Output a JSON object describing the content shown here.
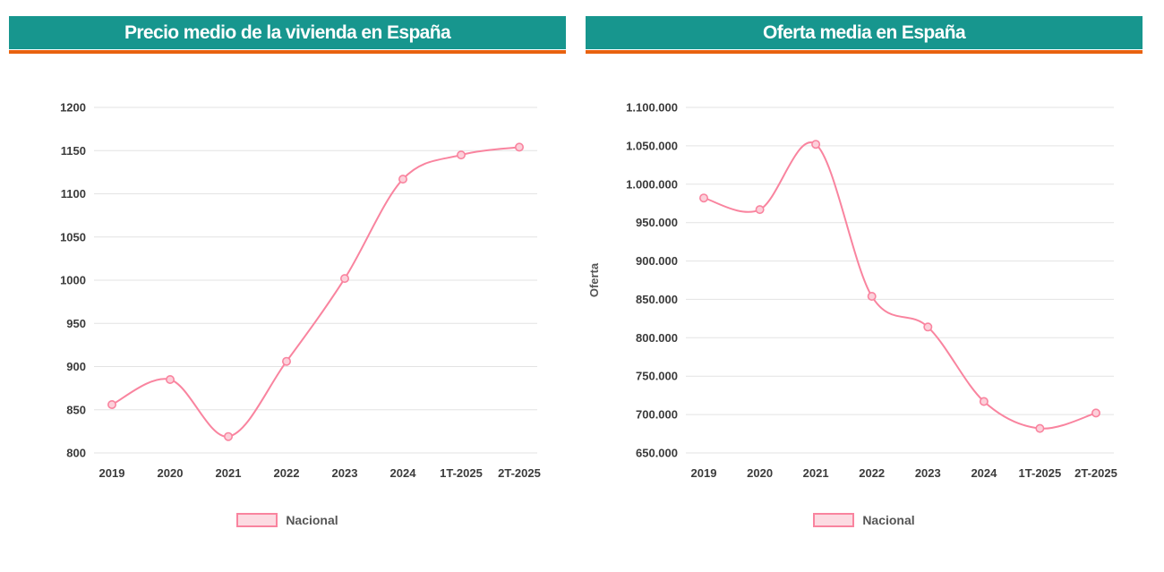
{
  "theme": {
    "header_bg": "#17968e",
    "accent": "#e8620f",
    "line_color": "#f9849f",
    "marker_fill": "#fcd0da",
    "grid_color": "#e3e3e3",
    "tick_color": "#3b3b3b"
  },
  "chart_data": [
    {
      "type": "line",
      "title": "Precio medio de la vivienda en España",
      "categories": [
        "2019",
        "2020",
        "2021",
        "2022",
        "2023",
        "2024",
        "1T-2025",
        "2T-2025"
      ],
      "series": [
        {
          "name": "Nacional",
          "values": [
            856,
            885,
            819,
            906,
            1002,
            1117,
            1145,
            1154
          ]
        }
      ],
      "xlabel": "",
      "ylabel": "",
      "ylim": [
        800,
        1200
      ],
      "ytick_values": [
        800,
        850,
        900,
        950,
        1000,
        1050,
        1100,
        1150,
        1200
      ],
      "ytick_labels": [
        "800",
        "850",
        "900",
        "950",
        "1000",
        "1050",
        "1100",
        "1150",
        "1200"
      ],
      "grid": "horizontal",
      "legend_position": "bottom"
    },
    {
      "type": "line",
      "title": "Oferta media en España",
      "categories": [
        "2019",
        "2020",
        "2021",
        "2022",
        "2023",
        "2024",
        "1T-2025",
        "2T-2025"
      ],
      "series": [
        {
          "name": "Nacional",
          "values": [
            982000,
            967000,
            1052000,
            854000,
            814000,
            717000,
            682000,
            702000
          ]
        }
      ],
      "xlabel": "",
      "ylabel": "Oferta",
      "ylim": [
        650000,
        1100000
      ],
      "ytick_values": [
        650000,
        700000,
        750000,
        800000,
        850000,
        900000,
        950000,
        1000000,
        1050000,
        1100000
      ],
      "ytick_labels": [
        "650.000",
        "700.000",
        "750.000",
        "800.000",
        "850.000",
        "900.000",
        "950.000",
        "1.000.000",
        "1.050.000",
        "1.100.000"
      ],
      "grid": "horizontal",
      "legend_position": "bottom"
    }
  ]
}
